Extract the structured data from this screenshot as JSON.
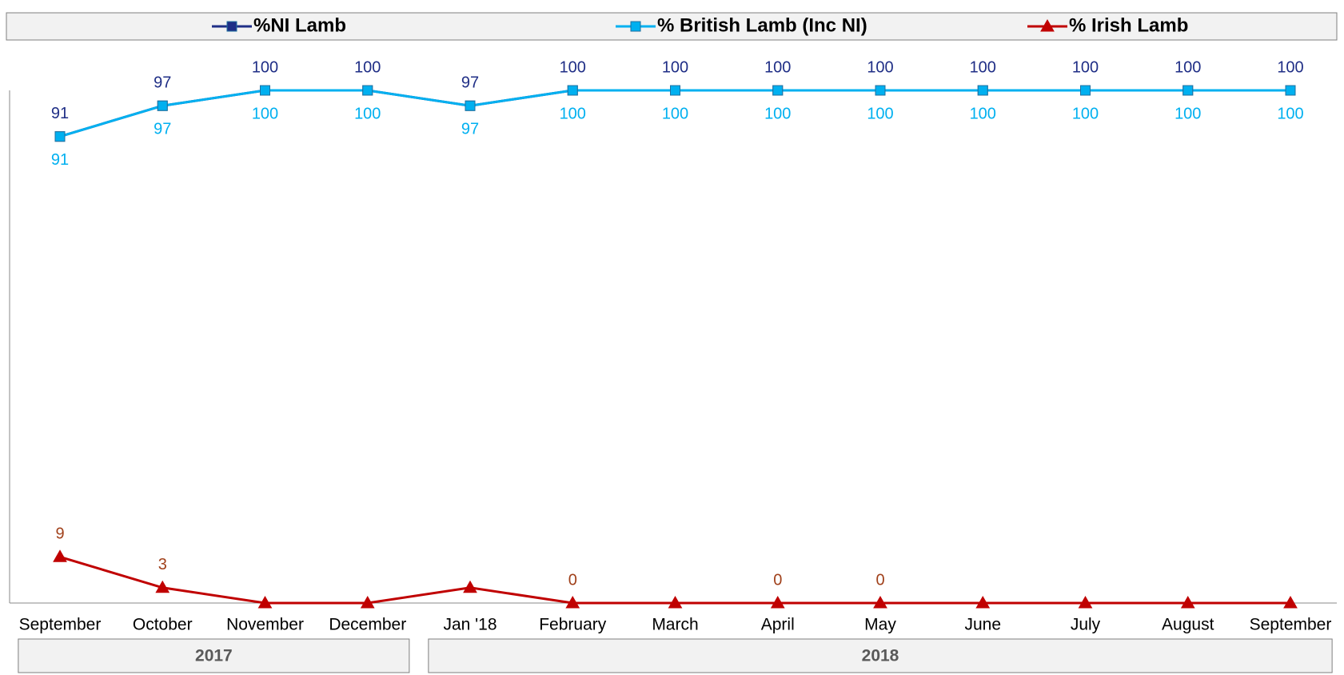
{
  "chart_data": {
    "type": "line",
    "categories": [
      "September",
      "October",
      "November",
      "December",
      "Jan '18",
      "February",
      "March",
      "April",
      "May",
      "June",
      "July",
      "August",
      "September"
    ],
    "groups": [
      {
        "label": "2017",
        "start": 0,
        "end": 3
      },
      {
        "label": "2018",
        "start": 4,
        "end": 12
      }
    ],
    "ylim": [
      0,
      100
    ],
    "series": [
      {
        "name": "%NI Lamb",
        "color": "#1f2e86",
        "marker": "square",
        "label_position": "above",
        "values": [
          91,
          97,
          100,
          100,
          97,
          100,
          100,
          100,
          100,
          100,
          100,
          100,
          100
        ]
      },
      {
        "name": "% British Lamb (Inc NI)",
        "color": "#00b0f0",
        "marker": "square",
        "label_position": "below",
        "values": [
          91,
          97,
          100,
          100,
          97,
          100,
          100,
          100,
          100,
          100,
          100,
          100,
          100
        ]
      },
      {
        "name": "% Irish Lamb",
        "color": "#c00000",
        "label_color": "#a0401a",
        "marker": "triangle",
        "label_position": "above",
        "values": [
          9,
          3,
          0,
          0,
          3,
          0,
          0,
          0,
          0,
          0,
          0,
          0,
          0
        ],
        "value_labels": [
          "9",
          "3",
          null,
          null,
          null,
          "0",
          null,
          "0",
          "0",
          null,
          null,
          null,
          null
        ]
      }
    ],
    "legend": "top"
  }
}
